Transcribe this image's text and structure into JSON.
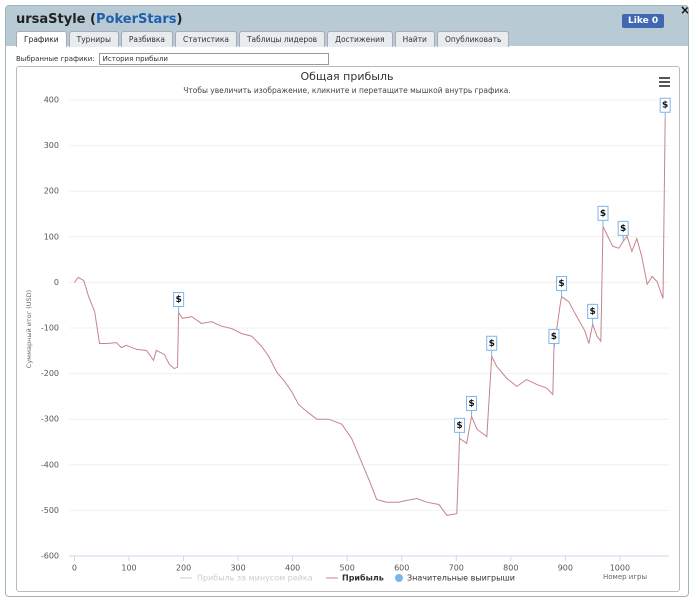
{
  "header": {
    "player": "ursaStyle",
    "site_open": "(",
    "site": "PokerStars",
    "site_close": ")",
    "like_label": "Like",
    "like_count": 0,
    "close": "×"
  },
  "tabs": [
    "Графики",
    "Турниры",
    "Разбивка",
    "Статистика",
    "Таблицы лидеров",
    "Достижения",
    "Найти",
    "Опубликовать"
  ],
  "active_tab": 0,
  "selector": {
    "label": "Выбранные графики:",
    "value": "История прибыли"
  },
  "chart_data": {
    "type": "line",
    "title": "Общая прибыль",
    "subtitle": "Чтобы увеличить изображение, кликните и перетащите мышкой внутрь графика.",
    "x_label": "Номер игры",
    "y_label": "Суммарный итог (USD)",
    "xlim": [
      -10,
      1090
    ],
    "ylim": [
      -600,
      400
    ],
    "xticks": [
      0,
      100,
      200,
      300,
      400,
      500,
      600,
      700,
      800,
      900,
      1000
    ],
    "yticks": [
      -600,
      -500,
      -400,
      -300,
      -200,
      -100,
      0,
      100,
      200,
      300,
      400
    ],
    "grid": true,
    "x": [
      0,
      7,
      17,
      26,
      37,
      46,
      59,
      77,
      86,
      95,
      114,
      132,
      145,
      150,
      165,
      174,
      183,
      189,
      191,
      198,
      215,
      233,
      251,
      270,
      288,
      306,
      325,
      343,
      356,
      371,
      385,
      398,
      411,
      426,
      444,
      466,
      490,
      508,
      526,
      541,
      554,
      572,
      594,
      609,
      628,
      646,
      668,
      683,
      701,
      706,
      719,
      728,
      738,
      756,
      765,
      774,
      793,
      811,
      829,
      848,
      866,
      877,
      879,
      890,
      893,
      906,
      921,
      936,
      943,
      950,
      958,
      965,
      969,
      976,
      987,
      998,
      1006,
      1013,
      1022,
      1031,
      1040,
      1050,
      1059,
      1068,
      1079,
      1083
    ],
    "series": [
      {
        "name": "Прибыль",
        "color": "#c7838a",
        "values": [
          0,
          11,
          4,
          -31,
          -64,
          -134,
          -134,
          -132,
          -143,
          -138,
          -147,
          -149,
          -171,
          -149,
          -158,
          -180,
          -189,
          -186,
          -66,
          -79,
          -75,
          -90,
          -86,
          -96,
          -101,
          -112,
          -118,
          -140,
          -162,
          -197,
          -217,
          -239,
          -268,
          -283,
          -300,
          -300,
          -311,
          -342,
          -393,
          -436,
          -476,
          -482,
          -482,
          -478,
          -474,
          -482,
          -487,
          -511,
          -507,
          -342,
          -353,
          -294,
          -322,
          -338,
          -162,
          -184,
          -211,
          -228,
          -213,
          -224,
          -232,
          -246,
          -147,
          -53,
          -31,
          -42,
          -75,
          -107,
          -134,
          -92,
          -118,
          -129,
          123,
          105,
          79,
          75,
          90,
          101,
          68,
          96,
          57,
          -4,
          13,
          2,
          -35,
          360
        ]
      }
    ],
    "major_wins": {
      "name": "Значительные выигрыши",
      "color": "#7cb5ec",
      "flag_label": "$",
      "x": [
        191,
        706,
        728,
        765,
        879,
        893,
        950,
        969,
        1006,
        1083
      ],
      "values": [
        -66,
        -342,
        -294,
        -162,
        -147,
        -31,
        -92,
        123,
        90,
        360
      ]
    },
    "inactive_series": {
      "name": "Прибыль за минусом рейка",
      "color": "#cccccc"
    }
  }
}
